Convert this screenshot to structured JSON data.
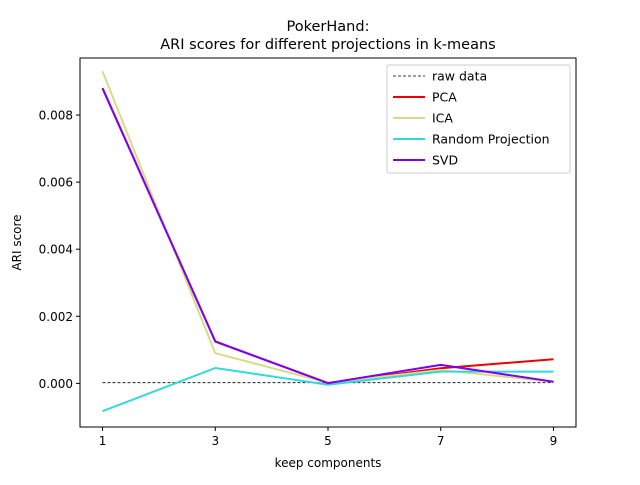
{
  "chart_data": {
    "type": "line",
    "title_line1": "PokerHand:",
    "title_line2": "ARI scores for different projections in k-means",
    "xlabel": "keep components",
    "ylabel": "ARI score",
    "x": [
      1,
      3,
      5,
      7,
      9
    ],
    "xlim": [
      0.6,
      9.4
    ],
    "ylim": [
      -0.0013,
      0.0097
    ],
    "xticks": [
      "1",
      "3",
      "5",
      "7",
      "9"
    ],
    "yticks": [
      "0.000",
      "0.002",
      "0.004",
      "0.006",
      "0.008"
    ],
    "ytick_values": [
      0.0,
      0.002,
      0.004,
      0.006,
      0.008
    ],
    "grid": false,
    "legend_position": "upper right",
    "series": [
      {
        "name": "raw data",
        "color": "#000000",
        "style": "dashed",
        "values": [
          2e-05,
          2e-05,
          2e-05,
          2e-05,
          2e-05
        ]
      },
      {
        "name": "PCA",
        "color": "#ee0000",
        "style": "solid",
        "values": [
          0.0088,
          0.00125,
          1e-05,
          0.00045,
          0.00072
        ]
      },
      {
        "name": "ICA",
        "color": "#d4dc8a",
        "style": "solid",
        "values": [
          0.0093,
          0.0009,
          2e-05,
          0.0004,
          5e-05
        ]
      },
      {
        "name": "Random Projection",
        "color": "#33d9d9",
        "style": "solid",
        "values": [
          -0.00083,
          0.00046,
          -4e-05,
          0.00035,
          0.00035
        ]
      },
      {
        "name": "SVD",
        "color": "#7f00ee",
        "style": "solid",
        "values": [
          0.0088,
          0.00125,
          1e-05,
          0.00055,
          5e-05
        ]
      }
    ]
  }
}
